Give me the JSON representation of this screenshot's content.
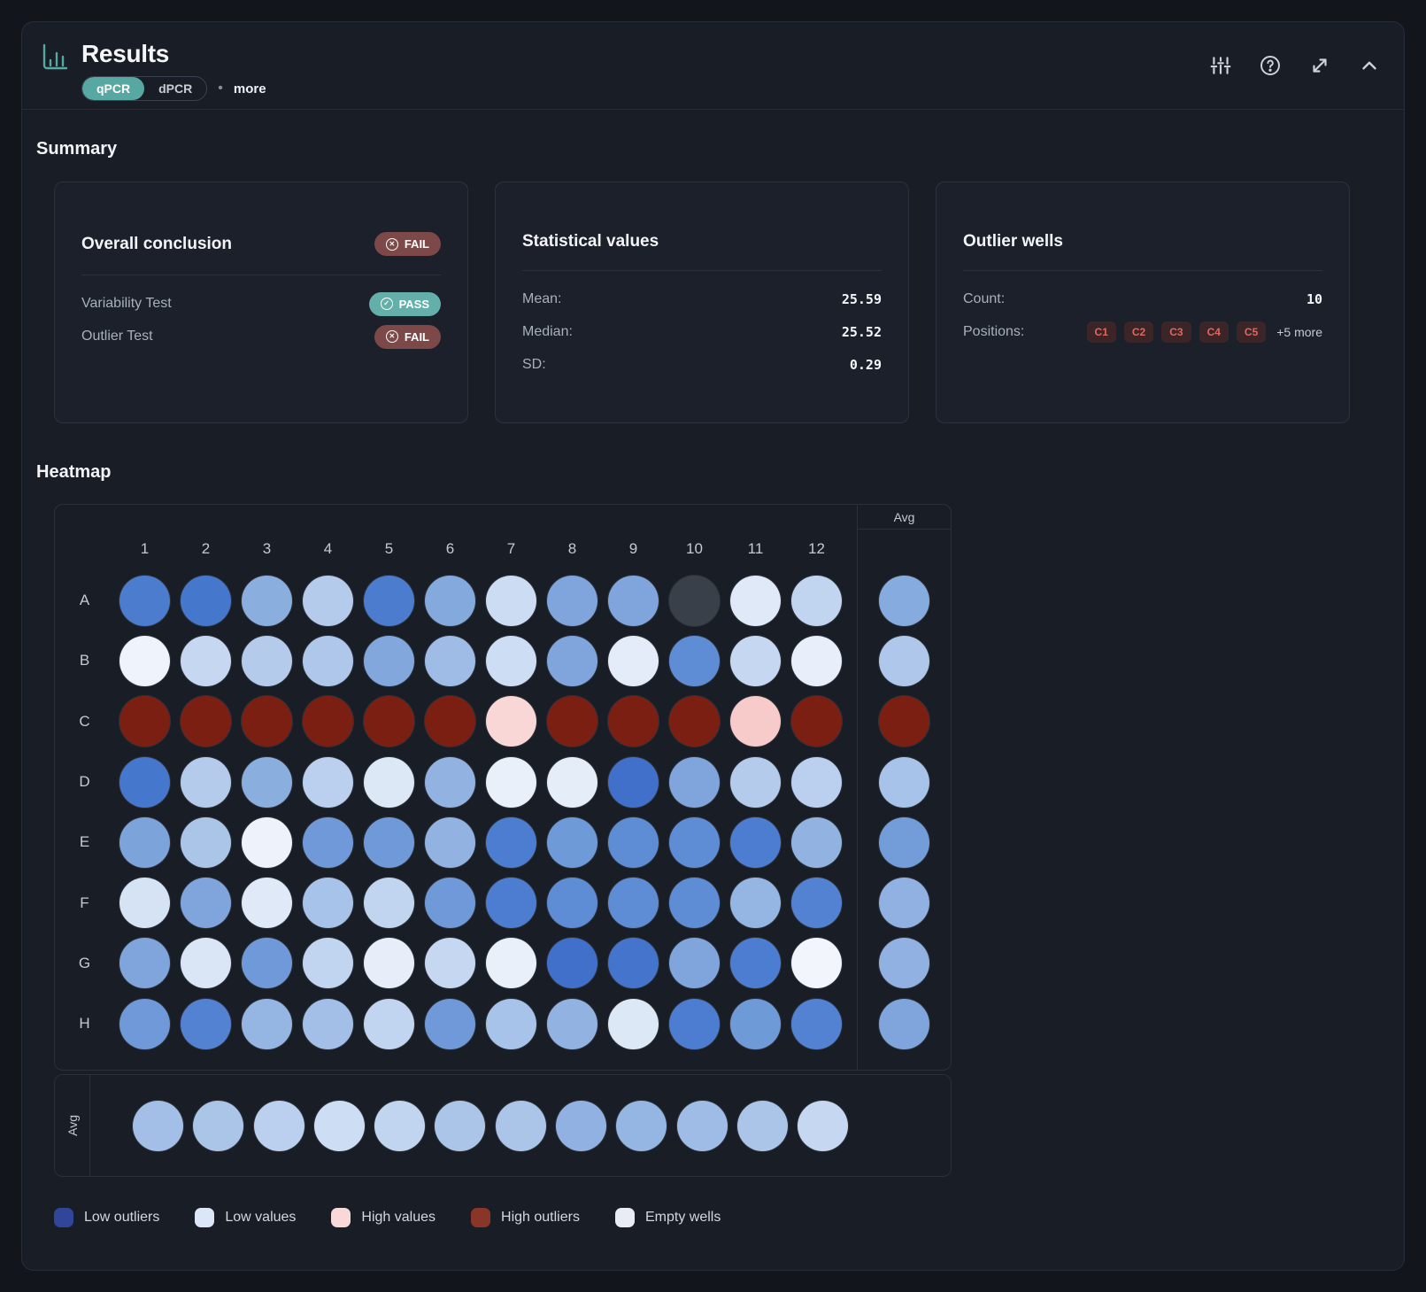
{
  "header": {
    "title": "Results",
    "tabs": [
      {
        "label": "qPCR",
        "active": true
      },
      {
        "label": "dPCR",
        "active": false
      }
    ],
    "more_label": "more",
    "icons": [
      "sliders-icon",
      "help-icon",
      "expand-icon",
      "collapse-icon"
    ]
  },
  "summary": {
    "heading": "Summary",
    "overall": {
      "title": "Overall conclusion",
      "badge": "FAIL",
      "rows": [
        {
          "label": "Variability Test",
          "status": "PASS"
        },
        {
          "label": "Outlier Test",
          "status": "FAIL"
        }
      ]
    },
    "stats": {
      "title": "Statistical values",
      "rows": [
        {
          "label": "Mean:",
          "value": "25.59"
        },
        {
          "label": "Median:",
          "value": "25.52"
        },
        {
          "label": "SD:",
          "value": "0.29"
        }
      ]
    },
    "outliers": {
      "title": "Outlier wells",
      "count_label": "Count:",
      "count": "10",
      "positions_label": "Positions:",
      "positions": [
        "C1",
        "C2",
        "C3",
        "C4",
        "C5"
      ],
      "more": "+5 more"
    }
  },
  "heatmap": {
    "heading": "Heatmap",
    "avg_label": "Avg",
    "columns": [
      "1",
      "2",
      "3",
      "4",
      "5",
      "6",
      "7",
      "8",
      "9",
      "10",
      "11",
      "12"
    ],
    "rows": [
      {
        "label": "A",
        "wells": [
          "#4b7ccd",
          "#4577cc",
          "#8aaede",
          "#b4cbec",
          "#4b7ccd",
          "#84a9dd",
          "#ccdcf3",
          "#7fa5dc",
          "#7fa5dc",
          "#394049",
          "#dfe9f8",
          "#c2d5f0"
        ],
        "avg": "#86abdf"
      },
      {
        "label": "B",
        "wells": [
          "#eff3fb",
          "#c6d8f1",
          "#b4cbec",
          "#aec7ea",
          "#81a7dc",
          "#9fbce6",
          "#cdddf3",
          "#7fa5dc",
          "#e3ecf8",
          "#5e8dd5",
          "#c6d8f1",
          "#e9effa"
        ],
        "avg": "#aec7ea"
      },
      {
        "label": "C",
        "wells": [
          "#7b1f13",
          "#7b1f13",
          "#7b1f13",
          "#7b1f13",
          "#7b1f13",
          "#7b1f13",
          "#f8d7d6",
          "#7b1f13",
          "#7b1f13",
          "#7b1f13",
          "#f6cbca",
          "#7b1f13"
        ],
        "avg": "#7b1f13"
      },
      {
        "label": "D",
        "wells": [
          "#4577cc",
          "#b4cbec",
          "#8aaede",
          "#bad0ee",
          "#dde8f7",
          "#92b3e2",
          "#eaf0fa",
          "#e5edf9",
          "#4070ca",
          "#7fa5dc",
          "#b4cbec",
          "#bad0ee"
        ],
        "avg": "#a8c3e9"
      },
      {
        "label": "E",
        "wells": [
          "#7da3db",
          "#abc5e9",
          "#edf2fb",
          "#6f99d8",
          "#6f99d8",
          "#92b3e2",
          "#4c7dd0",
          "#6f9ad8",
          "#5e8dd5",
          "#5e8dd5",
          "#4c7dd0",
          "#92b3e2"
        ],
        "avg": "#729dd9"
      },
      {
        "label": "F",
        "wells": [
          "#d6e3f5",
          "#7fa5dc",
          "#dfe9f8",
          "#a8c3e9",
          "#c2d5f0",
          "#6f99d8",
          "#4c7dd0",
          "#5e8dd5",
          "#5e8dd5",
          "#5e8dd5",
          "#95b5e3",
          "#5382d2"
        ],
        "avg": "#90b1e1"
      },
      {
        "label": "G",
        "wells": [
          "#7fa5dc",
          "#dae5f6",
          "#6f99d8",
          "#c2d5f0",
          "#e7eef9",
          "#c6d8f1",
          "#eaf0fa",
          "#4070ca",
          "#4474cb",
          "#7fa5dc",
          "#4c7dd0",
          "#f2f5fc"
        ],
        "avg": "#90b1e1"
      },
      {
        "label": "H",
        "wells": [
          "#6f99d8",
          "#5382d2",
          "#95b5e3",
          "#a3bfe7",
          "#c2d5f0",
          "#6f99d8",
          "#a8c3e9",
          "#92b3e2",
          "#dde8f7",
          "#4c7dd0",
          "#6f9ad8",
          "#5382d2"
        ],
        "avg": "#7fa5dc"
      }
    ],
    "col_avgs": [
      "#a3bfe7",
      "#abc5e9",
      "#bad0ee",
      "#cdddf3",
      "#c2d5f0",
      "#abc5e9",
      "#abc5e9",
      "#90b1e1",
      "#95b5e3",
      "#9fbce6",
      "#abc5e9",
      "#c6d8f1"
    ],
    "legend": [
      {
        "label": "Low outliers",
        "color": "#31459a"
      },
      {
        "label": "Low values",
        "color": "#dbe6f8"
      },
      {
        "label": "High values",
        "color": "#f8d9d8"
      },
      {
        "label": "High outliers",
        "color": "#8a352a"
      },
      {
        "label": "Empty wells",
        "color": "#e9edf3"
      }
    ]
  },
  "colors": {
    "accent_teal": "#57a7a3",
    "pass_badge": "#64afaa",
    "fail_badge": "#7d4848",
    "chip_bg": "#3b2527",
    "chip_text": "#e0675f",
    "empty_well": "#394049"
  }
}
